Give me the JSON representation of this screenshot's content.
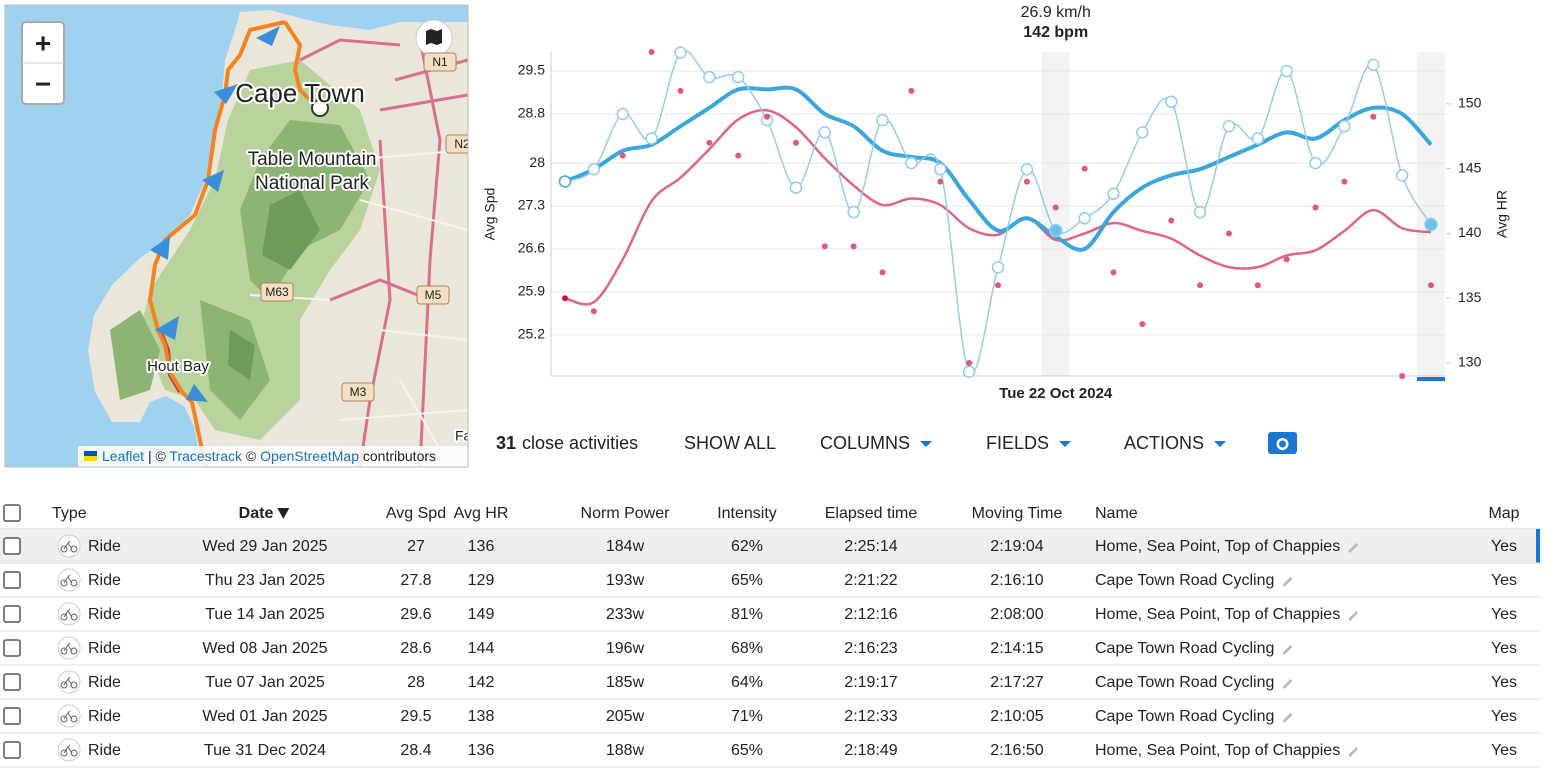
{
  "map": {
    "zoom_in": "+",
    "zoom_out": "−",
    "labels": [
      "Cape Town",
      "Table Mountain",
      "National Park",
      "Hout Bay"
    ],
    "road_shields": [
      "N1",
      "N2",
      "M63",
      "M5",
      "M3"
    ],
    "edge_label": "Fa",
    "attribution": [
      "Leaflet",
      "| ©",
      "Tracestrack",
      "©",
      "OpenStreetMap",
      "contributors"
    ]
  },
  "chart": {
    "type": "line",
    "tooltip": [
      "26.9 km/h",
      "142 bpm"
    ],
    "categories": [
      null,
      null,
      null,
      null,
      null,
      null,
      null,
      null,
      null,
      null,
      null,
      null,
      null,
      null,
      null,
      null,
      null,
      "Tue 22 Oct 2024",
      null,
      null,
      null,
      null,
      null,
      null,
      null,
      null,
      null,
      null,
      null,
      null,
      null
    ],
    "y_label": "Avg Spd",
    "y2_label": "Avg HR",
    "ylim": [
      24.53,
      29.81
    ],
    "yticks": [
      25.2,
      25.9,
      26.6,
      27.3,
      28,
      28.8,
      29.5
    ],
    "y2lim": [
      129,
      154
    ],
    "y2ticks": [
      130,
      135,
      140,
      145,
      150
    ],
    "grid": true,
    "hover_index": 17,
    "selected_index": 30,
    "series": [
      {
        "color": "#93cde9",
        "style": "points-line",
        "values": [
          27.7,
          27.9,
          28.8,
          28.4,
          29.8,
          29.4,
          29.4,
          28.7,
          27.6,
          28.5,
          27.2,
          28.7,
          28,
          27.9,
          24.6,
          26.3,
          27.9,
          26.9,
          27.1,
          27.5,
          28.5,
          29,
          27.2,
          28.6,
          28.4,
          29.5,
          28,
          28.6,
          29.6,
          27.8,
          27
        ]
      },
      {
        "color": "#e2587b",
        "axis": "y2",
        "style": "points",
        "values": [
          135,
          134,
          146,
          154,
          151,
          147,
          146,
          149,
          147,
          139,
          139,
          137,
          151,
          144,
          130,
          136,
          144,
          142,
          145,
          137,
          133,
          141,
          136,
          140,
          136,
          138,
          142,
          144,
          149,
          129,
          136
        ]
      },
      {
        "color": "#3aa6dc",
        "style": "trend",
        "values": [
          27.7,
          27.9,
          28.2,
          28.3,
          28.6,
          28.9,
          29.2,
          29.2,
          29.2,
          28.8,
          28.6,
          28.2,
          28.1,
          28,
          27.4,
          26.9,
          27.1,
          26.8,
          26.6,
          27.2,
          27.6,
          27.8,
          27.9,
          28.1,
          28.3,
          28.5,
          28.4,
          28.7,
          28.9,
          28.8,
          28.3
        ]
      },
      {
        "color": "#e26480",
        "axis": "y2",
        "style": "trend",
        "values": [
          135,
          134.7,
          138,
          142.5,
          144.3,
          146.5,
          148.8,
          149.5,
          148.2,
          145.8,
          143.7,
          142.2,
          142.7,
          142.2,
          140.4,
          139.9,
          141.2,
          139.5,
          140,
          140.8,
          140.2,
          139.6,
          138.3,
          137.4,
          137.4,
          138.3,
          138.7,
          140.2,
          141.8,
          140.4,
          140.1
        ]
      }
    ]
  },
  "toolbar": {
    "count": "31",
    "count_text": "close activities",
    "buttons": [
      "SHOW ALL",
      "COLUMNS",
      "FIELDS",
      "ACTIONS"
    ]
  },
  "table": {
    "columns": [
      "Type",
      "Date",
      "Avg Spd",
      "Avg HR",
      "Norm Power",
      "Intensity",
      "Elapsed time",
      "Moving Time",
      "Name",
      "Map"
    ],
    "rows": [
      [
        "Ride",
        "Wed 29 Jan 2025",
        "27",
        "136",
        "184w",
        "62%",
        "2:25:14",
        "2:19:04",
        "Home, Sea Point, Top of Chappies",
        "Yes"
      ],
      [
        "Ride",
        "Thu 23 Jan 2025",
        "27.8",
        "129",
        "193w",
        "65%",
        "2:21:22",
        "2:16:10",
        "Cape Town Road Cycling",
        "Yes"
      ],
      [
        "Ride",
        "Tue 14 Jan 2025",
        "29.6",
        "149",
        "233w",
        "81%",
        "2:12:16",
        "2:08:00",
        "Home, Sea Point, Top of Chappies",
        "Yes"
      ],
      [
        "Ride",
        "Wed 08 Jan 2025",
        "28.6",
        "144",
        "196w",
        "68%",
        "2:16:23",
        "2:14:15",
        "Cape Town Road Cycling",
        "Yes"
      ],
      [
        "Ride",
        "Tue 07 Jan 2025",
        "28",
        "142",
        "185w",
        "64%",
        "2:19:17",
        "2:17:27",
        "Cape Town Road Cycling",
        "Yes"
      ],
      [
        "Ride",
        "Wed 01 Jan 2025",
        "29.5",
        "138",
        "205w",
        "71%",
        "2:12:33",
        "2:10:05",
        "Cape Town Road Cycling",
        "Yes"
      ],
      [
        "Ride",
        "Tue 31 Dec 2024",
        "28.4",
        "136",
        "188w",
        "65%",
        "2:18:49",
        "2:16:50",
        "Home, Sea Point, Top of Chappies",
        "Yes"
      ]
    ]
  }
}
